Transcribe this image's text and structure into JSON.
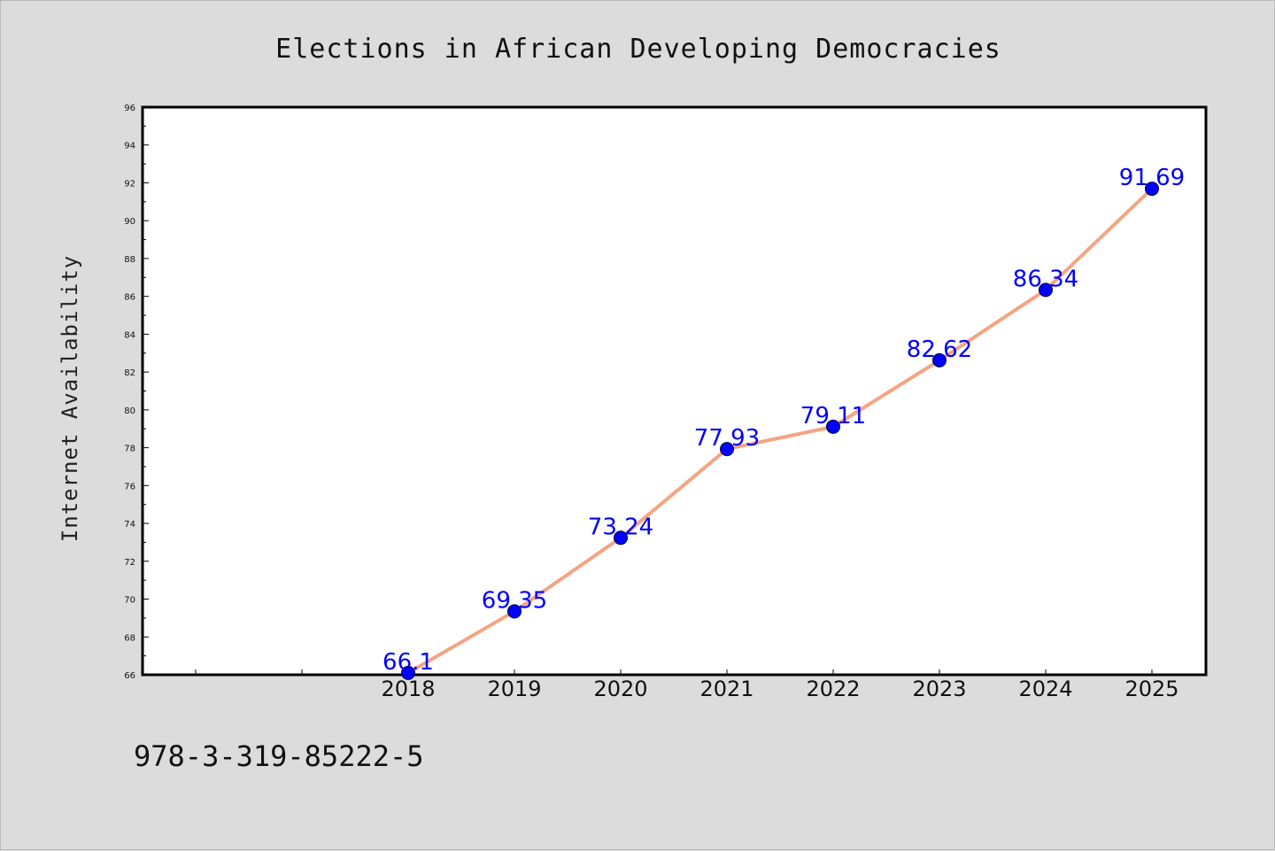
{
  "chart_data": {
    "type": "line",
    "title": "Elections in African Developing Democracies",
    "xlabel": "",
    "ylabel": "Internet Availability",
    "categories": [
      "2018",
      "2019",
      "2020",
      "2021",
      "2022",
      "2023",
      "2024",
      "2025"
    ],
    "series": [
      {
        "values": [
          66.1,
          69.35,
          73.24,
          77.93,
          79.11,
          82.62,
          86.34,
          91.69
        ],
        "color": "#f4a582",
        "marker_color": "#0000ff"
      }
    ],
    "data_labels": [
      "66.1",
      "69.35",
      "73.24",
      "77.93",
      "79.11",
      "82.62",
      "86.34",
      "91.69"
    ],
    "ylim": [
      66,
      96
    ],
    "yticks": [
      "66",
      "68",
      "70",
      "72",
      "74",
      "76",
      "78",
      "80",
      "82",
      "84",
      "86",
      "88",
      "90",
      "92",
      "94",
      "96"
    ],
    "grid": false,
    "legend": "none"
  },
  "footnote": "978-3-319-85222-5",
  "colors": {
    "background": "#dcdcdc",
    "plot_background": "#ffffff",
    "line": "#f4a582",
    "marker": "#0000ff",
    "data_label": "#0000ff"
  }
}
